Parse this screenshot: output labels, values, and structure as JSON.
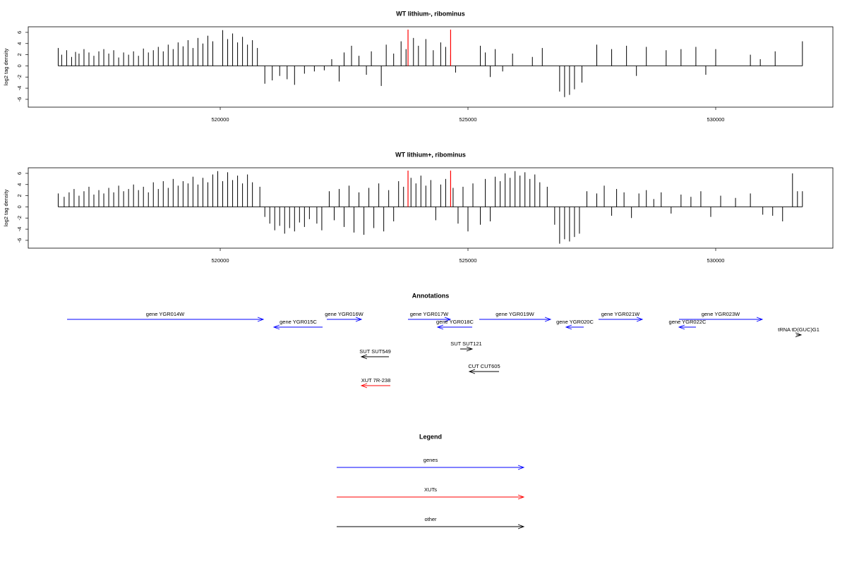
{
  "chart_data": [
    {
      "type": "bar",
      "title": "WT lithium-, ribominus",
      "y_label": "log2 tag density",
      "color": "#000000",
      "highlight_x": [
        523790,
        524650
      ],
      "highlight_color": "#ff0000",
      "xlim": [
        516125,
        532365
      ],
      "xticks": [
        520000,
        525000,
        530000
      ],
      "ylim": [
        -7.4,
        7.0
      ],
      "yticks": [
        -6,
        -4,
        -2,
        0,
        2,
        4,
        6
      ],
      "x": [
        516730,
        516800,
        516900,
        517000,
        517080,
        517150,
        517250,
        517350,
        517450,
        517550,
        517650,
        517750,
        517850,
        517950,
        518050,
        518150,
        518250,
        518350,
        518450,
        518550,
        518650,
        518750,
        518850,
        518950,
        519050,
        519150,
        519250,
        519350,
        519450,
        519550,
        519650,
        519750,
        519850,
        520050,
        520150,
        520250,
        520350,
        520450,
        520550,
        520650,
        520750,
        520900,
        521050,
        521200,
        521350,
        521500,
        521700,
        521900,
        522100,
        522250,
        522400,
        522500,
        522650,
        522800,
        522950,
        523050,
        523250,
        523350,
        523500,
        523650,
        523750,
        523900,
        524000,
        524150,
        524300,
        524450,
        524550,
        524650,
        524750,
        525250,
        525350,
        525450,
        525550,
        525700,
        525900,
        526300,
        526500,
        526850,
        526950,
        527050,
        527150,
        527300,
        527600,
        527900,
        528200,
        528400,
        528600,
        529000,
        529300,
        529600,
        529800,
        530000,
        530700,
        530900,
        531200,
        531750
      ],
      "values": [
        3.2,
        2.0,
        2.8,
        1.6,
        2.5,
        2.2,
        3.0,
        2.4,
        1.8,
        2.6,
        3.0,
        2.2,
        2.8,
        1.5,
        2.4,
        2.0,
        2.6,
        1.8,
        3.1,
        2.4,
        2.8,
        3.4,
        2.6,
        3.8,
        3.0,
        4.2,
        3.5,
        4.6,
        3.2,
        5.0,
        4.0,
        5.4,
        4.4,
        6.4,
        4.8,
        5.8,
        4.2,
        5.2,
        3.8,
        4.6,
        3.2,
        -3.2,
        -2.6,
        -1.8,
        -2.4,
        -3.4,
        -1.4,
        -1.0,
        -0.8,
        1.2,
        -2.8,
        2.4,
        3.6,
        1.8,
        -1.6,
        2.6,
        -3.6,
        3.8,
        2.2,
        4.4,
        3.0,
        5.0,
        3.6,
        4.8,
        2.8,
        4.2,
        3.4,
        2.0,
        -1.2,
        3.6,
        2.4,
        -2.0,
        3.0,
        -1.0,
        2.2,
        1.6,
        3.2,
        -4.6,
        -5.6,
        -5.2,
        -4.2,
        -3.0,
        3.8,
        3.0,
        3.6,
        -1.8,
        3.4,
        2.8,
        3.0,
        3.4,
        -1.6,
        3.0,
        2.0,
        1.2,
        2.6,
        4.4
      ]
    },
    {
      "type": "bar",
      "title": "WT lithium+, ribominus",
      "y_label": "log2 tag density",
      "color": "#000000",
      "highlight_x": [
        523790,
        524650
      ],
      "highlight_color": "#ff0000",
      "xlim": [
        516125,
        532365
      ],
      "xticks": [
        520000,
        525000,
        530000
      ],
      "ylim": [
        -7.4,
        7.0
      ],
      "yticks": [
        -6,
        -4,
        -2,
        0,
        2,
        4,
        6
      ],
      "x": [
        516730,
        516850,
        516950,
        517050,
        517150,
        517250,
        517350,
        517450,
        517550,
        517650,
        517750,
        517850,
        517950,
        518050,
        518150,
        518250,
        518350,
        518450,
        518550,
        518650,
        518750,
        518850,
        518950,
        519050,
        519150,
        519250,
        519350,
        519450,
        519550,
        519650,
        519750,
        519850,
        519950,
        520050,
        520150,
        520250,
        520350,
        520450,
        520550,
        520650,
        520800,
        520900,
        521000,
        521100,
        521200,
        521300,
        521400,
        521500,
        521600,
        521700,
        521800,
        521950,
        522050,
        522200,
        522300,
        522400,
        522500,
        522600,
        522700,
        522800,
        522900,
        523000,
        523100,
        523200,
        523300,
        523400,
        523500,
        523600,
        523700,
        523850,
        523950,
        524050,
        524150,
        524250,
        524350,
        524450,
        524550,
        524700,
        524800,
        524900,
        525000,
        525100,
        525250,
        525350,
        525450,
        525550,
        525650,
        525750,
        525850,
        525950,
        526050,
        526150,
        526250,
        526350,
        526450,
        526600,
        526750,
        526850,
        526950,
        527050,
        527150,
        527250,
        527400,
        527600,
        527750,
        527900,
        528000,
        528150,
        528300,
        528450,
        528600,
        528750,
        528900,
        529100,
        529300,
        529500,
        529700,
        529900,
        530100,
        530400,
        530700,
        530950,
        531150,
        531350,
        531550,
        531650,
        531750
      ],
      "values": [
        2.4,
        1.8,
        2.6,
        3.2,
        2.0,
        2.8,
        3.6,
        2.2,
        3.0,
        2.4,
        3.4,
        2.6,
        3.8,
        2.8,
        3.2,
        4.0,
        3.0,
        3.6,
        2.6,
        4.4,
        3.2,
        4.6,
        3.4,
        5.0,
        3.8,
        4.6,
        4.2,
        5.4,
        4.0,
        5.2,
        4.4,
        5.8,
        6.4,
        4.6,
        6.2,
        4.8,
        5.6,
        4.2,
        5.8,
        4.4,
        3.6,
        -1.8,
        -3.0,
        -4.2,
        -3.4,
        -4.8,
        -3.8,
        -4.4,
        -2.8,
        -3.6,
        -2.2,
        -3.0,
        -4.2,
        2.8,
        -2.4,
        3.2,
        -3.6,
        3.8,
        -4.6,
        2.6,
        -5.0,
        3.4,
        -3.8,
        4.2,
        -4.4,
        3.0,
        -2.6,
        4.6,
        3.6,
        5.2,
        4.2,
        5.6,
        3.8,
        4.8,
        -2.4,
        4.0,
        5.0,
        3.4,
        -3.0,
        3.6,
        -4.4,
        4.2,
        -3.2,
        5.0,
        -2.6,
        5.4,
        4.6,
        6.0,
        5.2,
        6.4,
        5.6,
        6.2,
        5.0,
        5.8,
        4.4,
        3.6,
        -3.2,
        -6.6,
        -5.8,
        -6.2,
        -5.4,
        -4.8,
        2.8,
        2.4,
        3.8,
        -1.6,
        3.2,
        2.6,
        -2.0,
        2.4,
        3.0,
        1.4,
        2.6,
        -1.2,
        2.2,
        1.8,
        2.8,
        -1.8,
        2.0,
        1.6,
        2.4,
        -1.4,
        -1.6,
        -2.6,
        6.0,
        2.8,
        2.8
      ]
    }
  ],
  "annotations": {
    "title": "Annotations",
    "features": [
      {
        "label": "gene YGR014W",
        "start": 516909,
        "end": 520869,
        "strand": "+",
        "color": "#0000ff"
      },
      {
        "label": "gene YGR015C",
        "start": 521083,
        "end": 522066,
        "strand": "-",
        "color": "#0000ff"
      },
      {
        "label": "gene YGR016W",
        "start": 522151,
        "end": 522849,
        "strand": "+",
        "color": "#0000ff"
      },
      {
        "label": "gene YGR017W",
        "start": 523789,
        "end": 524644,
        "strand": "+",
        "color": "#0000ff"
      },
      {
        "label": "gene YGR018C",
        "start": 524387,
        "end": 525085,
        "strand": "-",
        "color": "#0000ff"
      },
      {
        "label": "gene YGR019W",
        "start": 525228,
        "end": 526667,
        "strand": "+",
        "color": "#0000ff"
      },
      {
        "label": "gene YGR020C",
        "start": 526980,
        "end": 527336,
        "strand": "-",
        "color": "#0000ff"
      },
      {
        "label": "gene YGR021W",
        "start": 527635,
        "end": 528519,
        "strand": "+",
        "color": "#0000ff"
      },
      {
        "label": "gene YGR022C",
        "start": 529259,
        "end": 529601,
        "strand": "-",
        "color": "#0000ff"
      },
      {
        "label": "gene YGR023W",
        "start": 529259,
        "end": 530940,
        "strand": "+",
        "color": "#0000ff"
      },
      {
        "label": "tRNA tD(GUC)G1",
        "start": 531624,
        "end": 531724,
        "strand": "+",
        "color": "#000000"
      },
      {
        "label": "SUT SUT549",
        "start": 522849,
        "end": 523405,
        "strand": "-",
        "color": "#000000"
      },
      {
        "label": "SUT SUT121",
        "start": 524843,
        "end": 525085,
        "strand": "+",
        "color": "#000000"
      },
      {
        "label": "CUT CUT605",
        "start": 525028,
        "end": 525627,
        "strand": "-",
        "color": "#000000"
      },
      {
        "label": "XUT 7R-238",
        "start": 522849,
        "end": 523433,
        "strand": "-",
        "color": "#ff0000"
      }
    ]
  },
  "legend": {
    "title": "Legend",
    "items": [
      {
        "label": "genes",
        "color": "#0000ff"
      },
      {
        "label": "XUTs",
        "color": "#ff0000"
      },
      {
        "label": "other",
        "color": "#000000"
      }
    ]
  }
}
